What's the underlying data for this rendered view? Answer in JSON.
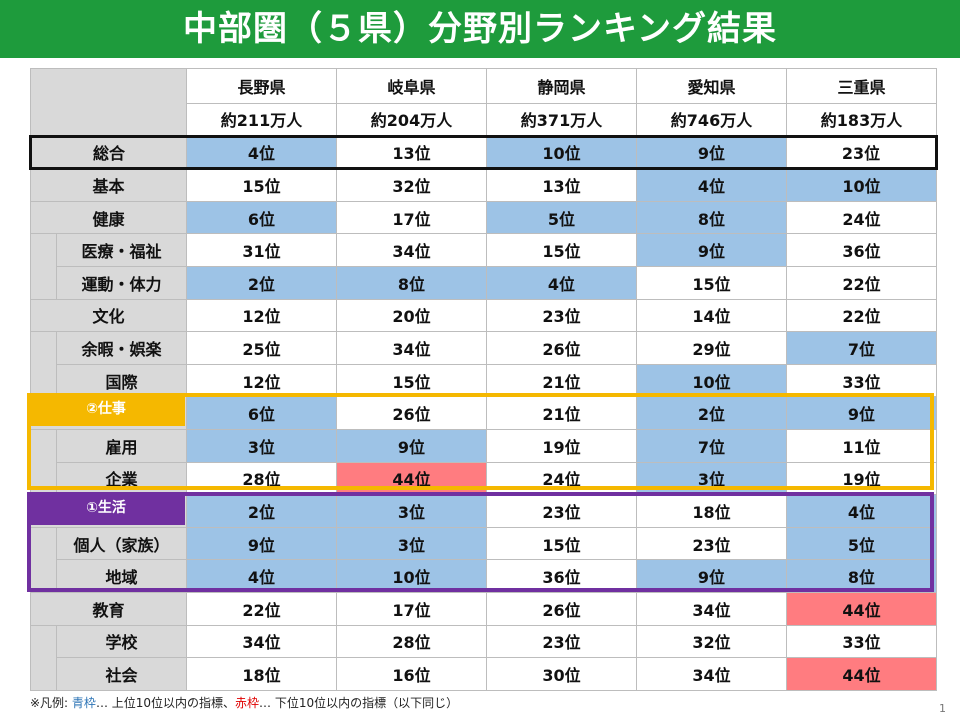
{
  "title": "中部圏（５県）分野別ランキング結果",
  "prefectures": [
    {
      "name": "長野県",
      "population": "約211万人"
    },
    {
      "name": "岐阜県",
      "population": "約204万人"
    },
    {
      "name": "静岡県",
      "population": "約371万人"
    },
    {
      "name": "愛知県",
      "population": "約746万人"
    },
    {
      "name": "三重県",
      "population": "約183万人"
    }
  ],
  "rows": {
    "total": {
      "label": "総合",
      "ranks": [
        "4位",
        "13位",
        "10位",
        "9位",
        "23位"
      ]
    },
    "basic": {
      "label": "基本",
      "ranks": [
        "15位",
        "32位",
        "13位",
        "4位",
        "10位"
      ]
    },
    "health": {
      "label": "健康",
      "ranks": [
        "6位",
        "17位",
        "5位",
        "8位",
        "24位"
      ]
    },
    "medical": {
      "label": "医療・福祉",
      "ranks": [
        "31位",
        "34位",
        "15位",
        "9位",
        "36位"
      ]
    },
    "exercise": {
      "label": "運動・体力",
      "ranks": [
        "2位",
        "8位",
        "4位",
        "15位",
        "22位"
      ]
    },
    "culture": {
      "label": "文化",
      "ranks": [
        "12位",
        "20位",
        "23位",
        "14位",
        "22位"
      ]
    },
    "leisure": {
      "label": "余暇・娯楽",
      "ranks": [
        "25位",
        "34位",
        "26位",
        "29位",
        "7位"
      ]
    },
    "intl": {
      "label": "国際",
      "ranks": [
        "12位",
        "15位",
        "21位",
        "10位",
        "33位"
      ]
    },
    "work": {
      "label": "②仕事",
      "ranks": [
        "6位",
        "26位",
        "21位",
        "2位",
        "9位"
      ]
    },
    "employment": {
      "label": "雇用",
      "ranks": [
        "3位",
        "9位",
        "19位",
        "7位",
        "11位"
      ]
    },
    "company": {
      "label": "企業",
      "ranks": [
        "28位",
        "44位",
        "24位",
        "3位",
        "19位"
      ]
    },
    "life": {
      "label": "①生活",
      "ranks": [
        "2位",
        "3位",
        "23位",
        "18位",
        "4位"
      ]
    },
    "individual": {
      "label": "個人（家族）",
      "ranks": [
        "9位",
        "3位",
        "15位",
        "23位",
        "5位"
      ]
    },
    "community": {
      "label": "地域",
      "ranks": [
        "4位",
        "10位",
        "36位",
        "9位",
        "8位"
      ]
    },
    "education": {
      "label": "教育",
      "ranks": [
        "22位",
        "17位",
        "26位",
        "34位",
        "44位"
      ]
    },
    "school": {
      "label": "学校",
      "ranks": [
        "34位",
        "28位",
        "23位",
        "32位",
        "33位"
      ]
    },
    "society": {
      "label": "社会",
      "ranks": [
        "18位",
        "16位",
        "30位",
        "34位",
        "44位"
      ]
    }
  },
  "footnote": {
    "prefix": "※凡例: ",
    "blue_term": "青枠",
    "blue_desc": "… 上位10位以内の指標、",
    "red_term": "赤枠",
    "red_desc": "… 下位10位以内の指標（以下同じ）"
  },
  "page_number": "1",
  "colors": {
    "title_bar": "#1e9b3c",
    "top10_fill": "#9dc3e6",
    "bottom10_fill": "#ff7c80",
    "work_frame": "#f5b800",
    "life_frame": "#7030a0",
    "label_fill": "#d9d9d9"
  }
}
